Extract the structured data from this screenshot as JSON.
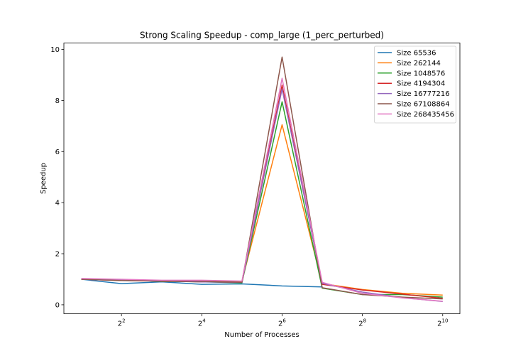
{
  "chart_data": {
    "type": "line",
    "title": "Strong Scaling Speedup - comp_large (1_perc_perturbed)",
    "xlabel": "Number of Processes",
    "ylabel": "Speedup",
    "x_scale": "log2",
    "xlim": [
      1.48,
      1378
    ],
    "ylim": [
      -0.35,
      10.25
    ],
    "x": [
      2,
      4,
      8,
      16,
      32,
      64,
      128,
      256,
      512,
      1024
    ],
    "xticks": [
      {
        "value": 4,
        "base": "2",
        "exp": "2"
      },
      {
        "value": 16,
        "base": "2",
        "exp": "4"
      },
      {
        "value": 64,
        "base": "2",
        "exp": "6"
      },
      {
        "value": 256,
        "base": "2",
        "exp": "8"
      },
      {
        "value": 1024,
        "base": "2",
        "exp": "10"
      }
    ],
    "yticks": [
      {
        "value": 0,
        "label": "0"
      },
      {
        "value": 2,
        "label": "2"
      },
      {
        "value": 4,
        "label": "4"
      },
      {
        "value": 6,
        "label": "6"
      },
      {
        "value": 8,
        "label": "8"
      },
      {
        "value": 10,
        "label": "10"
      }
    ],
    "grid": false,
    "legend_position": "top-right",
    "series": [
      {
        "name": "Size 65536",
        "color": "#1f77b4",
        "values": [
          1.0,
          0.83,
          0.9,
          0.8,
          0.82,
          0.74,
          0.7,
          null,
          null,
          null
        ]
      },
      {
        "name": "Size 262144",
        "color": "#ff7f0e",
        "values": [
          1.0,
          0.98,
          0.92,
          0.92,
          0.92,
          7.05,
          0.83,
          0.6,
          0.45,
          0.38
        ]
      },
      {
        "name": "Size 1048576",
        "color": "#2ca02c",
        "values": [
          1.0,
          0.97,
          0.92,
          0.9,
          0.86,
          7.95,
          0.65,
          0.4,
          0.4,
          0.3
        ]
      },
      {
        "name": "Size 4194304",
        "color": "#d62728",
        "values": [
          1.0,
          0.95,
          0.93,
          0.9,
          0.88,
          8.6,
          0.8,
          0.58,
          0.42,
          0.25
        ]
      },
      {
        "name": "Size 16777216",
        "color": "#9467bd",
        "values": [
          1.0,
          0.96,
          0.94,
          0.9,
          0.88,
          8.45,
          0.84,
          0.5,
          0.28,
          0.13
        ]
      },
      {
        "name": "Size 67108864",
        "color": "#8c564b",
        "values": [
          1.0,
          0.95,
          0.94,
          0.92,
          0.88,
          9.7,
          0.67,
          0.4,
          0.3,
          0.23
        ]
      },
      {
        "name": "Size 268435456",
        "color": "#e377c2",
        "values": [
          1.03,
          1.0,
          0.96,
          0.96,
          0.93,
          8.87,
          0.88,
          0.45,
          0.27,
          0.14
        ]
      }
    ]
  }
}
